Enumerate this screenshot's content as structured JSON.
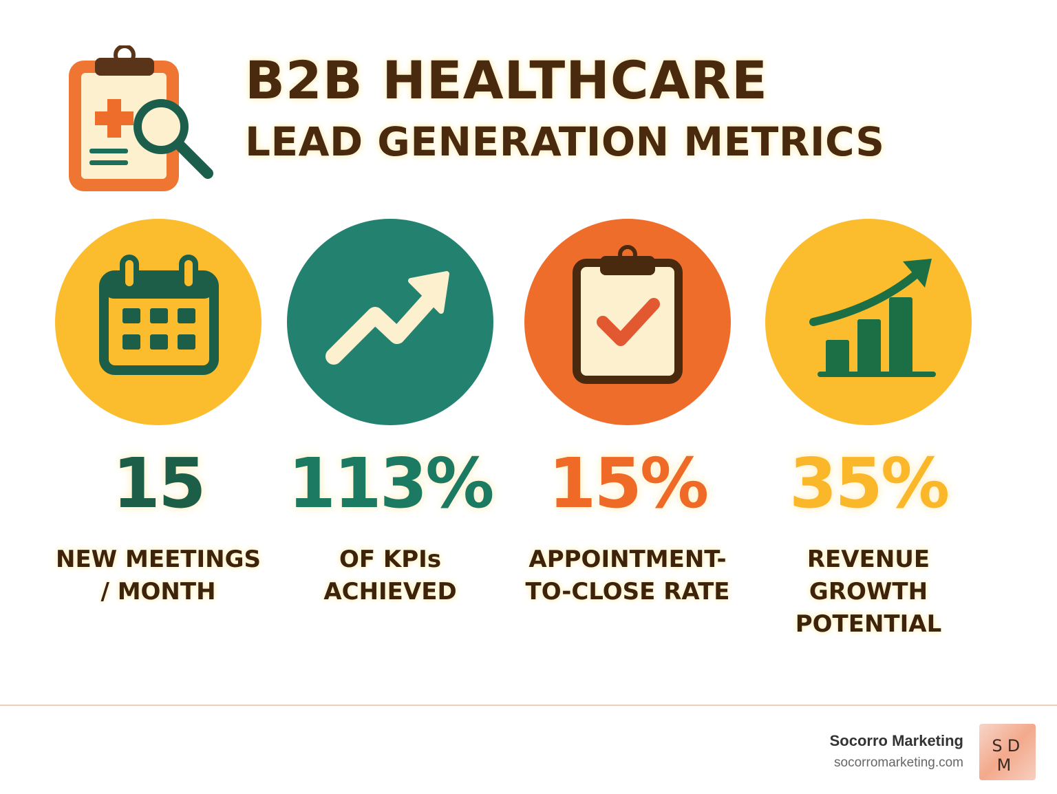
{
  "header": {
    "title_line1": "B2B HEALTHCARE",
    "title_line2": "LEAD GENERATION METRICS",
    "icon": "clipboard-magnifier-icon"
  },
  "metrics": [
    {
      "value": "15",
      "label_line1": "NEW MEETINGS",
      "label_line2": "/ MONTH",
      "label_line3": "",
      "icon": "calendar-icon",
      "circle_color": "#fbbd2d",
      "value_color": "#1c5e47"
    },
    {
      "value": "113%",
      "label_line1": "OF KPIs",
      "label_line2": "ACHIEVED",
      "label_line3": "",
      "icon": "trend-arrow-icon",
      "circle_color": "#22826f",
      "value_color": "#1c7a63"
    },
    {
      "value": "15%",
      "label_line1": "APPOINTMENT-",
      "label_line2": "TO-CLOSE RATE",
      "label_line3": "",
      "icon": "clipboard-check-icon",
      "circle_color": "#ee6d2b",
      "value_color": "#ee6a26"
    },
    {
      "value": "35%",
      "label_line1": "REVENUE",
      "label_line2": "GROWTH",
      "label_line3": "POTENTIAL",
      "icon": "bar-growth-icon",
      "circle_color": "#fbbd2d",
      "value_color": "#fbb72a"
    }
  ],
  "footer": {
    "brand_name": "Socorro Marketing",
    "brand_url": "socorromarketing.com",
    "logo_text": "SDM"
  }
}
